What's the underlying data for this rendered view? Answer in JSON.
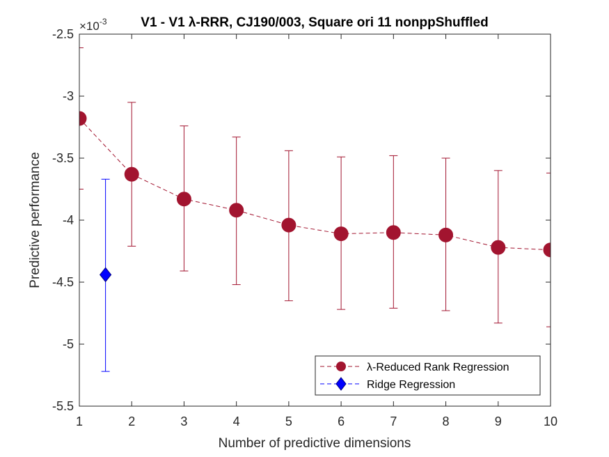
{
  "chart_data": {
    "type": "line",
    "title": "V1 - V1 λ-RRR, CJ190/003, Square ori 11 nonppShuffled",
    "xlabel": "Number of predictive dimensions",
    "ylabel": "Predictive performance",
    "exponent_label": "×10",
    "exponent_power": "-3",
    "xlim": [
      1,
      10
    ],
    "ylim": [
      -5.5,
      -2.5
    ],
    "x_ticks": [
      1,
      2,
      3,
      4,
      5,
      6,
      7,
      8,
      9,
      10
    ],
    "y_ticks": [
      -5.5,
      -5,
      -4.5,
      -4,
      -3.5,
      -3,
      -2.5
    ],
    "y_tick_labels": [
      "-5.5",
      "-5",
      "-4.5",
      "-4",
      "-3.5",
      "-3",
      "-2.5"
    ],
    "grid": false,
    "legend_position": "bottom-right",
    "series": [
      {
        "name": "λ-Reduced Rank Regression",
        "color": "#A2142F",
        "marker": "circle",
        "line_style": "dashed",
        "x": [
          1,
          2,
          3,
          4,
          5,
          6,
          7,
          8,
          9,
          10
        ],
        "y": [
          -3.18,
          -3.63,
          -3.83,
          -3.92,
          -4.04,
          -4.11,
          -4.1,
          -4.12,
          -4.22,
          -4.24
        ],
        "err_low": [
          -3.75,
          -4.21,
          -4.41,
          -4.52,
          -4.65,
          -4.72,
          -4.71,
          -4.73,
          -4.83,
          -4.86
        ],
        "err_high": [
          -2.61,
          -3.05,
          -3.24,
          -3.33,
          -3.44,
          -3.49,
          -3.48,
          -3.5,
          -3.6,
          -3.62
        ]
      },
      {
        "name": "Ridge Regression",
        "color": "#0000FF",
        "marker": "diamond",
        "line_style": "dashed",
        "x": [
          1.5
        ],
        "y": [
          -4.44
        ],
        "err_low": [
          -5.22
        ],
        "err_high": [
          -3.67
        ]
      }
    ]
  }
}
